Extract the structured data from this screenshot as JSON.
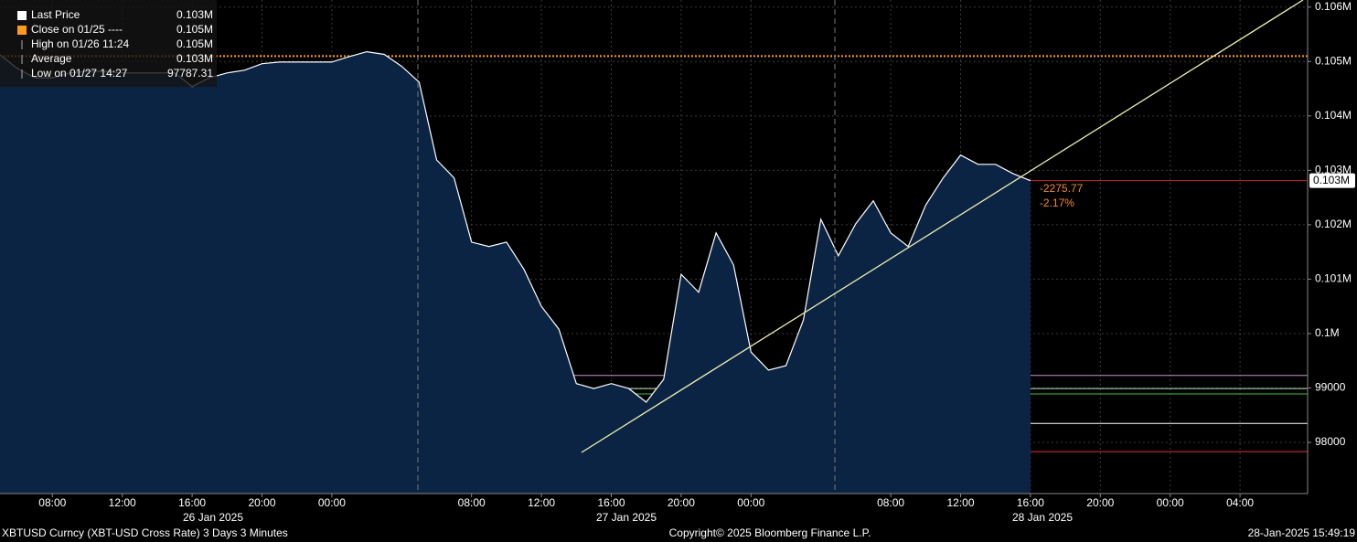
{
  "chart_data": {
    "type": "area",
    "categories": [
      null,
      null,
      null,
      "08:00",
      null,
      null,
      null,
      "12:00",
      null,
      null,
      null,
      "16:00",
      null,
      null,
      null,
      "20:00",
      null,
      null,
      null,
      "00:00",
      null,
      null,
      null,
      null,
      null,
      null,
      null,
      "08:00",
      null,
      null,
      null,
      "12:00",
      null,
      null,
      null,
      "16:00",
      null,
      null,
      null,
      "20:00",
      null,
      null,
      null,
      "00:00",
      null,
      null,
      null,
      null,
      null,
      null,
      null,
      "08:00",
      null,
      null,
      null,
      "12:00",
      null,
      null,
      null,
      "16:00",
      null,
      null,
      null,
      "20:00",
      null,
      null,
      null,
      "00:00",
      null,
      null,
      null,
      "04:00",
      null,
      null,
      null
    ],
    "values": [
      105120,
      104870,
      104700,
      104700,
      104790,
      104820,
      104820,
      104790,
      104790,
      104790,
      104790,
      104540,
      104700,
      104790,
      104840,
      104960,
      104990,
      104990,
      104990,
      104990,
      105090,
      105180,
      105130,
      104910,
      104620,
      103190,
      102860,
      101680,
      101600,
      101680,
      101180,
      100500,
      100080,
      99080,
      98990,
      99080,
      98990,
      98740,
      99160,
      101090,
      100760,
      101850,
      101260,
      99660,
      99330,
      99410,
      100250,
      102100,
      101430,
      102020,
      102440,
      101850,
      101600,
      102360,
      102860,
      103280,
      103110,
      103110,
      102940,
      102810,
      null,
      null,
      null,
      null,
      null,
      null,
      null,
      null,
      null,
      null,
      null,
      null,
      null,
      null,
      null
    ],
    "color": "#ffffff",
    "fill": "#0b2444",
    "date_labels": [
      "26 Jan 2025",
      "27 Jan 2025",
      "28 Jan 2025"
    ],
    "ylim": [
      97060,
      106130
    ],
    "yticks": [
      98000,
      99000,
      {
        "value": 100000,
        "label": "0.1M"
      },
      {
        "value": 101000,
        "label": "0.101M"
      },
      {
        "value": 102000,
        "label": "0.102M"
      },
      {
        "value": 103000,
        "label": "0.103M"
      },
      {
        "value": 104000,
        "label": "0.104M"
      },
      {
        "value": 105000,
        "label": "0.105M"
      },
      {
        "value": 106000,
        "label": "0.106M"
      }
    ],
    "grid": true,
    "legend": [
      {
        "label": "Last Price",
        "value": "0.103M",
        "color": "#ffffff"
      },
      {
        "label": "Close on 01/25 ----",
        "value": "0.105M",
        "color": "#ff9a1f"
      },
      {
        "label": "High on 01/26 11:24",
        "value": "0.105M",
        "color": "#aaaaaa"
      },
      {
        "label": "Average",
        "value": "0.103M",
        "color": "#aaaaaa"
      },
      {
        "label": "Low on 01/27 14:27",
        "value": "97787.31",
        "color": "#aaaaaa"
      }
    ],
    "reference_lines": [
      {
        "value": 105100,
        "color": "#ff9a1f",
        "style": "dotted"
      },
      {
        "value": 99230,
        "color": "#c890d0",
        "style": "solid"
      },
      {
        "value": 98990,
        "color": "#b8f0b8",
        "style": "solid"
      },
      {
        "value": 98890,
        "color": "#40c040",
        "style": "solid"
      },
      {
        "value": 98350,
        "color": "#ffffff",
        "style": "solid"
      },
      {
        "value": 97830,
        "color": "#e03030",
        "style": "solid"
      }
    ],
    "last_label": "0.103M",
    "change_labels": [
      "-2275.77",
      "-2.17%"
    ],
    "footer": [
      "XBTUSD Curncy (XBT-USD Cross Rate) 3 Days 3 Minutes",
      "Copyright© 2025 Bloomberg Finance L.P.",
      "28-Jan-2025 15:49:19"
    ]
  }
}
